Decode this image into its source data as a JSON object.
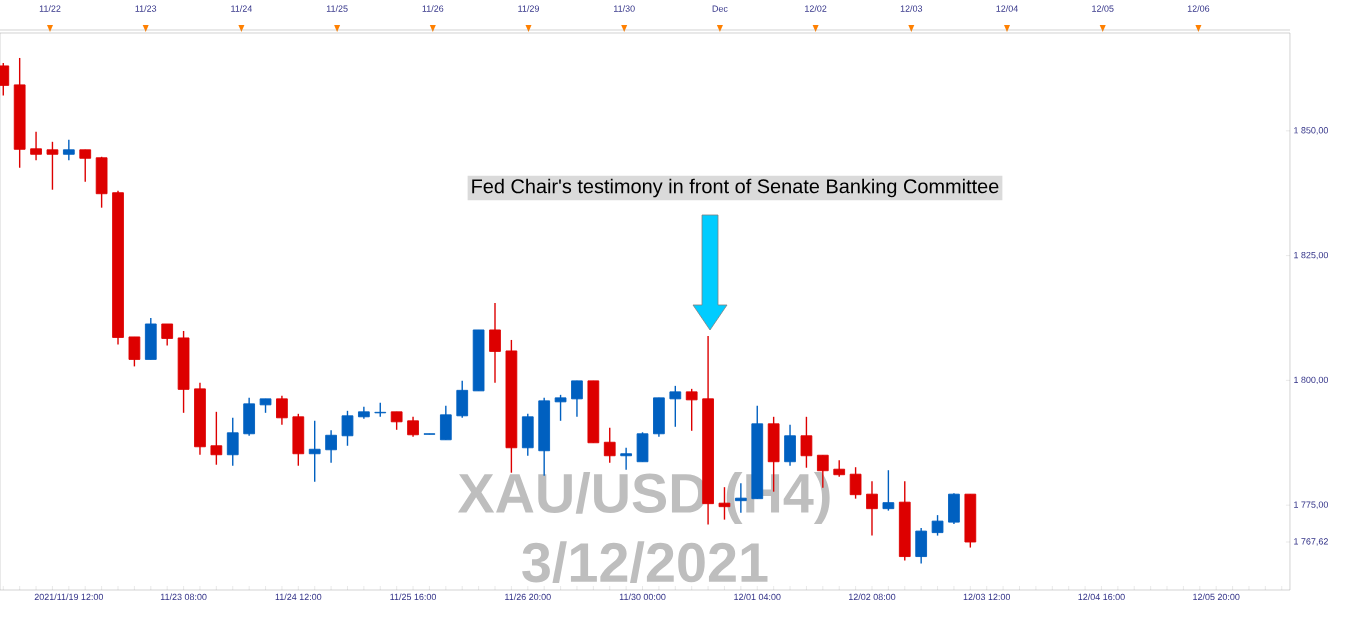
{
  "chart_data": {
    "type": "candlestick",
    "title": "XAU/USD (H4)",
    "subtitle": "3/12/2021",
    "annotations": [
      "Fed Chair's testimony in front of Senate Banking Committee",
      "11/22",
      "11/23",
      "11/24",
      "11/25",
      "11/26",
      "11/29",
      "11/30",
      "Dec",
      "12/02",
      "12/03",
      "12/04",
      "12/05",
      "12/06"
    ],
    "categories": [
      null,
      null,
      null,
      null,
      "2021/11/19 12:00",
      null,
      null,
      null,
      null,
      null,
      null,
      "11/23 08:00",
      null,
      null,
      null,
      null,
      null,
      null,
      "11/24 12:00",
      null,
      null,
      null,
      null,
      null,
      null,
      "11/25 16:00",
      null,
      null,
      null,
      null,
      null,
      null,
      "11/26 20:00",
      null,
      null,
      null,
      null,
      null,
      null,
      "11/30 00:00",
      null,
      null,
      null,
      null,
      null,
      null,
      "12/01 04:00",
      null,
      null,
      null,
      null,
      null,
      null,
      "12/02 08:00",
      null,
      null,
      null,
      null,
      null,
      null,
      "12/03 12:00",
      null,
      null,
      null,
      null,
      null,
      null,
      "12/04 16:00",
      null,
      null,
      null,
      null,
      null,
      null,
      "12/05 20:00",
      null,
      null,
      null,
      null
    ],
    "ohlc": [
      [
        1863.0,
        1863.6,
        1857.1,
        1859.1
      ],
      [
        1859.2,
        1864.6,
        1842.6,
        1846.3
      ],
      [
        1846.4,
        1849.8,
        1844.1,
        1845.3
      ],
      [
        1846.2,
        1847.8,
        1838.2,
        1845.3
      ],
      [
        1845.3,
        1848.2,
        1844.1,
        1846.2
      ],
      [
        1846.2,
        1846.2,
        1839.8,
        1844.5
      ],
      [
        1844.6,
        1844.8,
        1834.6,
        1837.4
      ],
      [
        1837.6,
        1838.0,
        1807.2,
        1808.6
      ],
      [
        1808.7,
        1808.7,
        1802.8,
        1804.2
      ],
      [
        1804.2,
        1812.5,
        1804.2,
        1811.3
      ],
      [
        1811.3,
        1811.3,
        1807.0,
        1808.4
      ],
      [
        1808.5,
        1809.9,
        1793.5,
        1798.2
      ],
      [
        1798.3,
        1799.5,
        1785.1,
        1786.7
      ],
      [
        1786.9,
        1793.7,
        1783.1,
        1785.1
      ],
      [
        1785.1,
        1792.5,
        1782.9,
        1789.5
      ],
      [
        1789.3,
        1796.5,
        1788.9,
        1795.3
      ],
      [
        1795.1,
        1796.3,
        1793.5,
        1796.3
      ],
      [
        1796.3,
        1796.9,
        1791.1,
        1792.5
      ],
      [
        1792.7,
        1793.3,
        1782.9,
        1785.3
      ],
      [
        1785.3,
        1791.9,
        1779.7,
        1786.2
      ],
      [
        1786.1,
        1790.0,
        1783.5,
        1789.0
      ],
      [
        1788.9,
        1793.9,
        1786.9,
        1792.9
      ],
      [
        1792.7,
        1794.7,
        1792.3,
        1793.7
      ],
      [
        1793.5,
        1795.5,
        1792.7,
        1793.6
      ],
      [
        1793.7,
        1793.7,
        1790.1,
        1791.7
      ],
      [
        1791.9,
        1792.7,
        1788.7,
        1789.1
      ],
      [
        1789.2,
        1789.3,
        1789.2,
        1789.3
      ],
      [
        1788.1,
        1794.9,
        1788.1,
        1793.1
      ],
      [
        1792.9,
        1799.9,
        1792.5,
        1798.0
      ],
      [
        1797.9,
        1810.1,
        1797.9,
        1810.1
      ],
      [
        1810.1,
        1815.5,
        1799.5,
        1805.8
      ],
      [
        1805.9,
        1808.1,
        1781.5,
        1786.5
      ],
      [
        1786.5,
        1793.3,
        1784.9,
        1792.7
      ],
      [
        1785.9,
        1796.5,
        1780.9,
        1795.9
      ],
      [
        1795.7,
        1797.1,
        1791.9,
        1796.5
      ],
      [
        1796.3,
        1799.9,
        1792.7,
        1799.9
      ],
      [
        1799.9,
        1799.9,
        1787.5,
        1787.5
      ],
      [
        1787.6,
        1790.5,
        1783.5,
        1784.9
      ],
      [
        1784.9,
        1786.5,
        1782.1,
        1785.3
      ],
      [
        1783.7,
        1789.6,
        1783.7,
        1789.3
      ],
      [
        1789.3,
        1796.5,
        1788.7,
        1796.5
      ],
      [
        1796.3,
        1798.9,
        1790.7,
        1797.7
      ],
      [
        1797.7,
        1798.3,
        1789.9,
        1796.1
      ],
      [
        1796.3,
        1808.9,
        1771.1,
        1775.3
      ],
      [
        1775.4,
        1778.6,
        1772.1,
        1774.7
      ],
      [
        1775.9,
        1779.4,
        1773.5,
        1776.4
      ],
      [
        1776.3,
        1794.9,
        1776.3,
        1791.3
      ],
      [
        1791.3,
        1792.7,
        1777.7,
        1783.7
      ],
      [
        1783.7,
        1791.1,
        1782.9,
        1788.9
      ],
      [
        1788.9,
        1792.7,
        1782.5,
        1784.9
      ],
      [
        1785.0,
        1785.0,
        1778.5,
        1781.9
      ],
      [
        1782.2,
        1784.0,
        1780.7,
        1781.1
      ],
      [
        1781.2,
        1782.6,
        1776.3,
        1777.1
      ],
      [
        1777.2,
        1779.8,
        1768.9,
        1774.3
      ],
      [
        1774.3,
        1782.0,
        1773.9,
        1775.5
      ],
      [
        1775.6,
        1779.8,
        1763.9,
        1764.7
      ],
      [
        1764.7,
        1770.4,
        1763.3,
        1769.8
      ],
      [
        1769.5,
        1773.0,
        1768.9,
        1771.8
      ],
      [
        1771.6,
        1777.4,
        1771.2,
        1777.2
      ],
      [
        1777.2,
        1777.2,
        1766.5,
        1767.62
      ],
      null,
      null,
      null,
      null,
      null,
      null,
      null,
      null,
      null,
      null,
      null,
      null,
      null,
      null,
      null,
      null,
      null,
      null,
      null
    ],
    "colors": [
      "#dd0000",
      "#dd0000",
      "#dd0000",
      "#dd0000",
      "#0060c0",
      "#dd0000",
      "#dd0000",
      "#dd0000",
      "#dd0000",
      "#0060c0",
      "#dd0000",
      "#dd0000",
      "#dd0000",
      "#dd0000",
      "#0060c0",
      "#0060c0",
      "#0060c0",
      "#dd0000",
      "#dd0000",
      "#0060c0",
      "#0060c0",
      "#0060c0",
      "#0060c0",
      "#0060c0",
      "#dd0000",
      "#dd0000",
      "#0060c0",
      "#0060c0",
      "#0060c0",
      "#0060c0",
      "#dd0000",
      "#dd0000",
      "#0060c0",
      "#0060c0",
      "#0060c0",
      "#0060c0",
      "#dd0000",
      "#dd0000",
      "#0060c0",
      "#0060c0",
      "#0060c0",
      "#0060c0",
      "#dd0000",
      "#dd0000",
      "#dd0000",
      "#0060c0",
      "#0060c0",
      "#dd0000",
      "#0060c0",
      "#dd0000",
      "#dd0000",
      "#dd0000",
      "#dd0000",
      "#dd0000",
      "#0060c0",
      "#dd0000",
      "#0060c0",
      "#0060c0",
      "#0060c0",
      "#dd0000",
      null,
      null,
      null,
      null,
      null,
      null,
      null,
      null,
      null,
      null,
      null,
      null,
      null,
      null,
      null,
      null,
      null,
      null,
      null
    ],
    "ylim": [
      1758,
      1869.6
    ],
    "yticks": [
      {
        "value": 1767.62,
        "label": "1 767,62"
      },
      {
        "value": 1775,
        "label": "1 775,00"
      },
      {
        "value": 1800,
        "label": "1 800,00"
      },
      {
        "value": 1825,
        "label": "1 825,00"
      },
      {
        "value": 1850,
        "label": "1 850,00"
      }
    ]
  }
}
